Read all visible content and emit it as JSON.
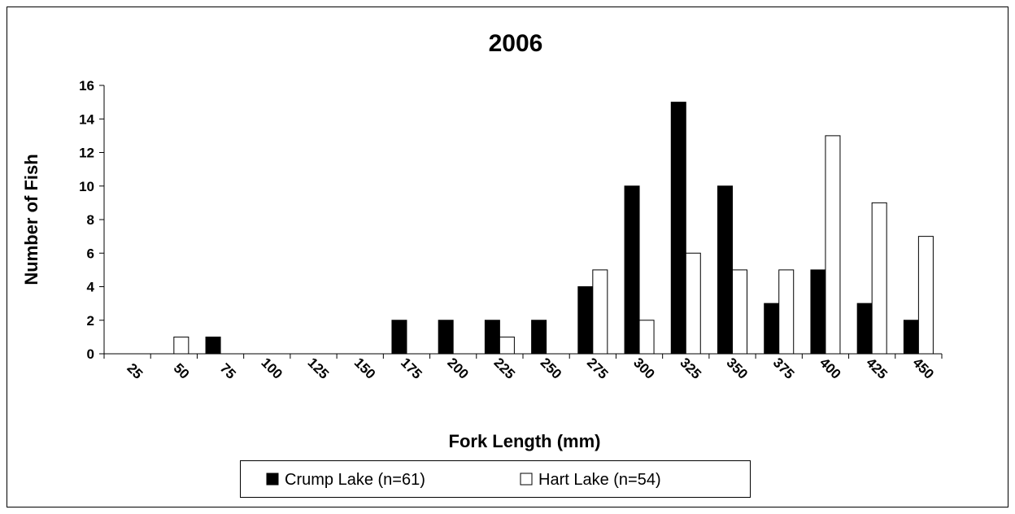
{
  "chart_data": {
    "type": "bar",
    "title": "2006",
    "x_label": "Fork Length (mm)",
    "y_label": "Number of Fish",
    "categories": [
      "25",
      "50",
      "75",
      "100",
      "125",
      "150",
      "175",
      "200",
      "225",
      "250",
      "275",
      "300",
      "325",
      "350",
      "375",
      "400",
      "425",
      "450"
    ],
    "series": [
      {
        "name": "Crump Lake (n=61)",
        "color": "#000000",
        "values": [
          0,
          0,
          1,
          0,
          0,
          0,
          2,
          2,
          2,
          2,
          4,
          10,
          15,
          10,
          3,
          5,
          3,
          2
        ]
      },
      {
        "name": "Hart Lake (n=54)",
        "color": "#ffffff",
        "values": [
          0,
          1,
          0,
          0,
          0,
          0,
          0,
          0,
          1,
          0,
          5,
          2,
          6,
          5,
          5,
          13,
          9,
          7
        ]
      }
    ],
    "ylim": [
      0,
      16
    ],
    "yticks": [
      0,
      2,
      4,
      6,
      8,
      10,
      12,
      14,
      16
    ],
    "grid": false,
    "legend": "bottom"
  }
}
